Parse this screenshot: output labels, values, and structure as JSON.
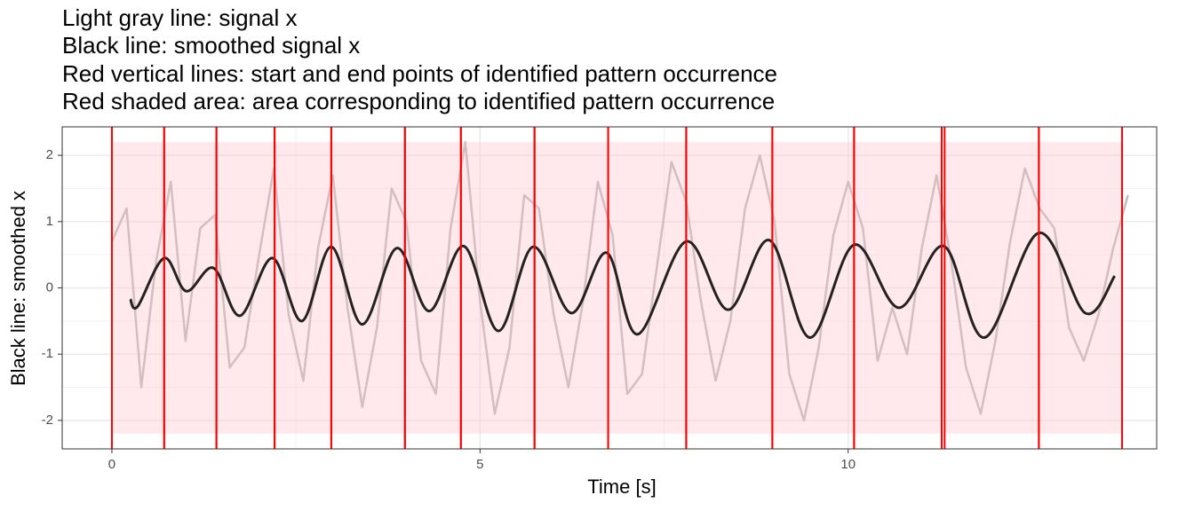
{
  "chart_data": {
    "type": "line",
    "title_lines": [
      "Light gray line: signal x",
      "Black line: smoothed signal x",
      "Red vertical lines: start and end points of identified pattern occurrence",
      "Red shaded area: area corresponding to identified pattern occurrence"
    ],
    "xlabel": "Time [s]",
    "ylabel": "Black line: smoothed x",
    "xlim": [
      -0.675,
      14.19
    ],
    "ylim": [
      -2.43,
      2.43
    ],
    "xticks": [
      0,
      5,
      10
    ],
    "yticks": [
      -2,
      -1,
      0,
      1,
      2
    ],
    "grid": true,
    "series": [
      {
        "color": "#bdbdbd",
        "width": 2.5,
        "x": [
          0,
          0.2,
          0.4,
          0.6,
          0.8,
          1.0,
          1.2,
          1.4,
          1.6,
          1.8,
          2.0,
          2.2,
          2.4,
          2.6,
          2.8,
          3.0,
          3.2,
          3.4,
          3.6,
          3.8,
          4.0,
          4.2,
          4.4,
          4.6,
          4.8,
          5.0,
          5.2,
          5.4,
          5.6,
          5.8,
          6.0,
          6.2,
          6.4,
          6.6,
          6.8,
          7.0,
          7.2,
          7.4,
          7.6,
          7.8,
          8.0,
          8.2,
          8.4,
          8.6,
          8.8,
          9.0,
          9.2,
          9.4,
          9.6,
          9.8,
          10.0,
          10.2,
          10.4,
          10.6,
          10.8,
          11.0,
          11.2,
          11.4,
          11.6,
          11.8,
          12.0,
          12.2,
          12.4,
          12.6,
          12.8,
          13.0,
          13.2,
          13.4,
          13.6,
          13.8
        ],
        "values": [
          0.7,
          1.2,
          -1.5,
          0.4,
          1.6,
          -0.8,
          0.9,
          1.1,
          -1.2,
          -0.9,
          0.5,
          1.8,
          -0.4,
          -1.4,
          0.6,
          1.7,
          -0.3,
          -1.8,
          -0.6,
          1.5,
          1.0,
          -1.1,
          -1.6,
          0.9,
          2.2,
          -0.2,
          -1.9,
          -0.9,
          1.4,
          1.2,
          -0.4,
          -1.5,
          -0.2,
          1.6,
          0.8,
          -1.6,
          -1.3,
          0.3,
          1.9,
          1.3,
          -0.2,
          -1.4,
          -0.5,
          1.2,
          2.0,
          1.0,
          -1.3,
          -2.0,
          -0.9,
          0.8,
          1.6,
          0.9,
          -1.1,
          -0.3,
          -1.0,
          0.6,
          1.7,
          0.4,
          -1.2,
          -1.9,
          -0.8,
          0.7,
          1.8,
          1.2,
          0.9,
          -0.6,
          -1.1,
          -0.4,
          0.6,
          1.4
        ]
      },
      {
        "color": "#222222",
        "width": 3,
        "x": [
          0.25,
          0.35,
          0.71,
          1.01,
          1.38,
          1.74,
          2.18,
          2.58,
          2.98,
          3.4,
          3.87,
          4.31,
          4.78,
          5.25,
          5.72,
          6.24,
          6.72,
          7.14,
          7.8,
          8.37,
          8.93,
          9.48,
          10.08,
          10.69,
          11.3,
          11.85,
          12.59,
          13.22,
          13.62
        ],
        "values": [
          -0.17,
          -0.28,
          0.45,
          -0.05,
          0.3,
          -0.42,
          0.45,
          -0.5,
          0.62,
          -0.55,
          0.6,
          -0.35,
          0.63,
          -0.65,
          0.62,
          -0.38,
          0.53,
          -0.7,
          0.7,
          -0.33,
          0.72,
          -0.75,
          0.65,
          -0.3,
          0.63,
          -0.75,
          0.83,
          -0.38,
          0.18
        ]
      }
    ],
    "pattern_occurrences": {
      "start": [
        0,
        0.71,
        1.42,
        2.21,
        2.98,
        3.98,
        4.74,
        5.74,
        6.74,
        7.8,
        8.97,
        10.08,
        11.31,
        12.59
      ],
      "end": [
        0.71,
        1.42,
        2.21,
        2.98,
        3.98,
        4.74,
        5.74,
        6.74,
        7.8,
        8.97,
        10.08,
        11.27,
        12.59,
        13.72
      ],
      "color": "#ff0000",
      "shade_color": "#ffc0cb",
      "shade_ylim": [
        -2.2,
        2.2
      ]
    }
  }
}
